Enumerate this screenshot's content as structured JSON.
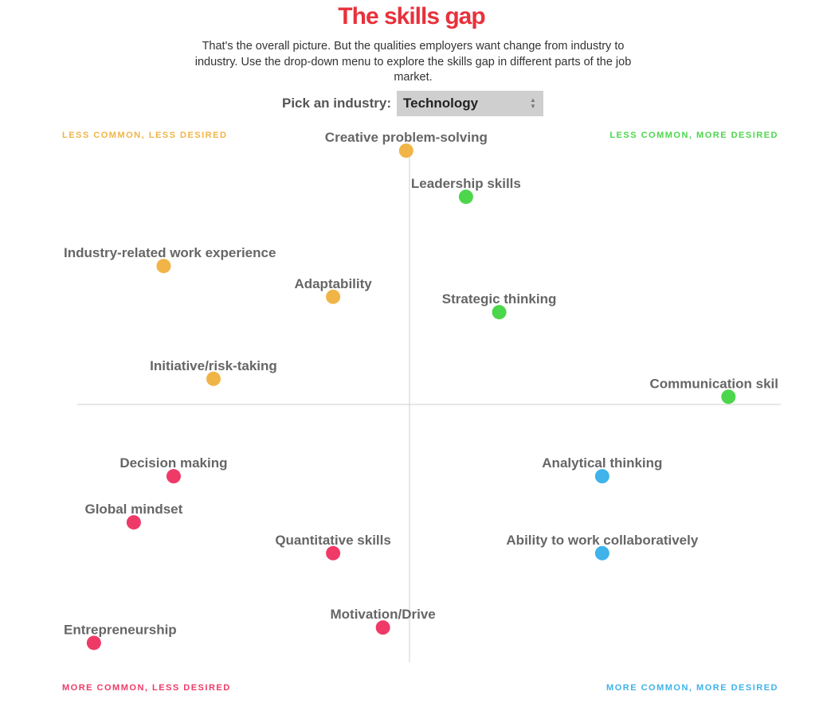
{
  "header": {
    "title": "The skills gap",
    "intro": "That's the overall picture. But the qualities employers want change from industry to industry. Use the drop-down menu to explore the skills gap in different parts of the job market."
  },
  "picker": {
    "label": "Pick an industry:",
    "selected": "Technology"
  },
  "quadrants": {
    "top_left": "LESS COMMON, LESS DESIRED",
    "top_right": "LESS COMMON, MORE DESIRED",
    "bottom_left": "MORE COMMON, LESS DESIRED",
    "bottom_right": "MORE COMMON, MORE DESIRED"
  },
  "colors": {
    "title": "#e8313b",
    "less_common_less_desired": "#f1b446",
    "less_common_more_desired": "#4cd64c",
    "more_common_less_desired": "#ef3a67",
    "more_common_more_desired": "#3fb3ea"
  },
  "chart_data": {
    "type": "scatter",
    "xlim": [
      -1,
      1
    ],
    "ylim": [
      -1,
      1
    ],
    "grid": false,
    "x_axis_crosses": 0,
    "y_axis_crosses": 0,
    "points": [
      {
        "label": "Creative problem-solving",
        "x": -0.01,
        "y": 0.99,
        "group": "less_common_less_desired"
      },
      {
        "label": "Leadership skills",
        "x": 0.17,
        "y": 0.81,
        "group": "less_common_more_desired"
      },
      {
        "label": "Industry-related work experience",
        "x": -0.74,
        "y": 0.54,
        "group": "less_common_less_desired"
      },
      {
        "label": "Adaptability",
        "x": -0.23,
        "y": 0.42,
        "group": "less_common_less_desired"
      },
      {
        "label": "Strategic thinking",
        "x": 0.27,
        "y": 0.36,
        "group": "less_common_more_desired"
      },
      {
        "label": "Initiative/risk-taking",
        "x": -0.59,
        "y": 0.1,
        "group": "less_common_less_desired"
      },
      {
        "label": "Communication skil",
        "x": 0.96,
        "y": 0.03,
        "group": "less_common_more_desired"
      },
      {
        "label": "Decision making",
        "x": -0.71,
        "y": -0.28,
        "group": "more_common_less_desired"
      },
      {
        "label": "Analytical thinking",
        "x": 0.58,
        "y": -0.28,
        "group": "more_common_more_desired"
      },
      {
        "label": "Global mindset",
        "x": -0.83,
        "y": -0.46,
        "group": "more_common_less_desired"
      },
      {
        "label": "Quantitative skills",
        "x": -0.23,
        "y": -0.58,
        "group": "more_common_less_desired"
      },
      {
        "label": "Ability to work collaboratively",
        "x": 0.58,
        "y": -0.58,
        "group": "more_common_more_desired"
      },
      {
        "label": "Motivation/Drive",
        "x": -0.08,
        "y": -0.87,
        "group": "more_common_less_desired"
      },
      {
        "label": "Entrepreneurship",
        "x": -0.95,
        "y": -0.93,
        "group": "more_common_less_desired"
      }
    ]
  }
}
